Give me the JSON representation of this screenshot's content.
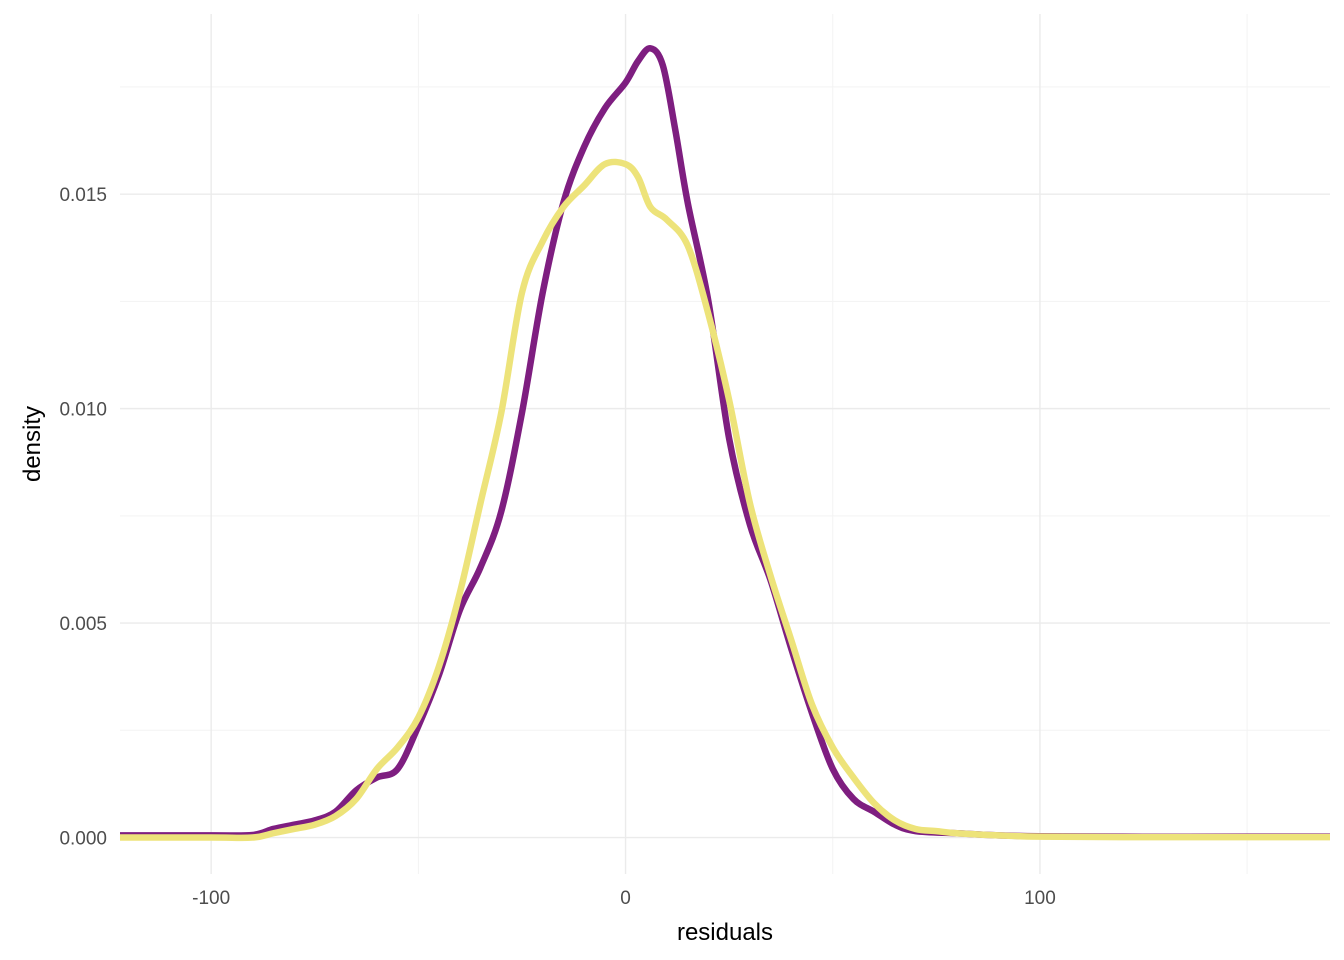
{
  "chart_data": {
    "type": "line",
    "title": "",
    "xlabel": "residuals",
    "ylabel": "density",
    "xlim": [
      -122,
      170
    ],
    "ylim": [
      -0.00085,
      0.0192
    ],
    "x_ticks": [
      -100,
      0,
      100
    ],
    "x_tick_labels": [
      "-100",
      "0",
      "100"
    ],
    "y_ticks": [
      0.0,
      0.005,
      0.01,
      0.015
    ],
    "y_tick_labels": [
      "0.000",
      "0.005",
      "0.010",
      "0.015"
    ],
    "grid": true,
    "legend": "none",
    "series": [
      {
        "color": "#7e1e80",
        "x": [
          -122,
          -100,
          -90,
          -85,
          -80,
          -75,
          -70,
          -65,
          -60,
          -55,
          -50,
          -45,
          -40,
          -35,
          -30,
          -25,
          -20,
          -15,
          -10,
          -5,
          0,
          3,
          6,
          9,
          12,
          15,
          20,
          25,
          30,
          35,
          40,
          45,
          50,
          55,
          60,
          65,
          70,
          80,
          90,
          100,
          120,
          150,
          170
        ],
        "y": [
          5e-05,
          5e-05,
          6e-05,
          0.0002,
          0.0003,
          0.0004,
          0.0006,
          0.0011,
          0.0014,
          0.0016,
          0.0026,
          0.0038,
          0.0053,
          0.0063,
          0.0076,
          0.0099,
          0.0127,
          0.0148,
          0.0161,
          0.017,
          0.0176,
          0.0181,
          0.0184,
          0.018,
          0.0165,
          0.0148,
          0.0125,
          0.0093,
          0.0073,
          0.006,
          0.0044,
          0.0029,
          0.0016,
          0.0009,
          0.0006,
          0.0003,
          0.00015,
          0.0001,
          5e-05,
          3e-05,
          2e-05,
          2e-05,
          2e-05
        ]
      },
      {
        "color": "#ede37a",
        "x": [
          -122,
          -100,
          -90,
          -85,
          -80,
          -75,
          -70,
          -65,
          -60,
          -55,
          -50,
          -45,
          -40,
          -35,
          -30,
          -25,
          -20,
          -15,
          -10,
          -5,
          0,
          3,
          6,
          10,
          15,
          20,
          25,
          30,
          35,
          40,
          45,
          50,
          55,
          60,
          65,
          70,
          75,
          80,
          90,
          100,
          120,
          150,
          170
        ],
        "y": [
          0.0,
          0.0,
          0.0,
          0.0001,
          0.0002,
          0.0003,
          0.0005,
          0.0009,
          0.0016,
          0.0021,
          0.0028,
          0.004,
          0.0057,
          0.0078,
          0.0099,
          0.0127,
          0.0139,
          0.0147,
          0.0152,
          0.0157,
          0.0157,
          0.0154,
          0.0147,
          0.0144,
          0.0138,
          0.0122,
          0.0102,
          0.0078,
          0.0061,
          0.0046,
          0.0031,
          0.0021,
          0.0014,
          0.0008,
          0.0004,
          0.0002,
          0.00015,
          0.0001,
          5e-05,
          2e-05,
          1e-05,
          1e-05,
          1e-05
        ]
      }
    ]
  }
}
